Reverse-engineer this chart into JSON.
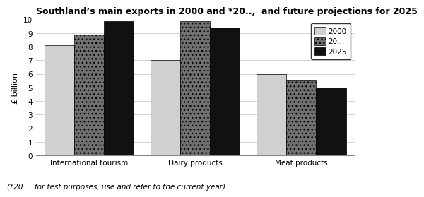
{
  "title": "Southland’s main exports in 2000 and *20..,  and future projections for 2025",
  "footnote": "(*20.. : for test purposes, use and refer to the current year)",
  "categories": [
    "International tourism",
    "Dairy products",
    "Meat products"
  ],
  "series": {
    "2000": [
      8.1,
      7.0,
      6.0
    ],
    "20...": [
      8.9,
      9.9,
      5.5
    ],
    "2025": [
      9.9,
      9.4,
      5.0
    ]
  },
  "legend_labels": [
    "2000",
    "20...",
    "2025"
  ],
  "bar_colors": [
    "#d0d0d0",
    "#707070",
    "#111111"
  ],
  "bar_hatches": [
    "",
    "...",
    ""
  ],
  "ylabel": "£ billion",
  "ylim": [
    0,
    10
  ],
  "yticks": [
    0,
    1,
    2,
    3,
    4,
    5,
    6,
    7,
    8,
    9,
    10
  ],
  "background_color": "#ffffff",
  "title_fontsize": 9,
  "footnote_fontsize": 7.5,
  "bar_width": 0.28
}
